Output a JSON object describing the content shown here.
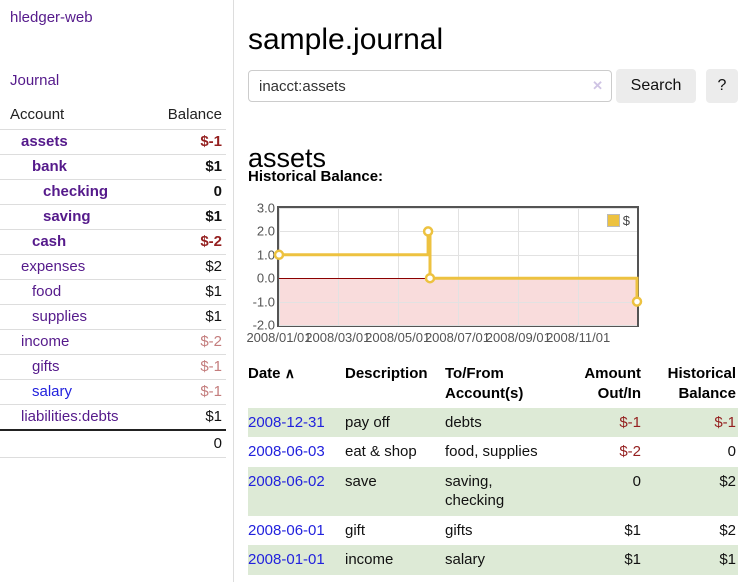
{
  "colors": {
    "purple": "#551a8b",
    "blue": "#2222dd",
    "negStrong": "#941f1f",
    "negSoft": "#c47d7d",
    "green": "#ddead6",
    "pink": "#f9dcdc",
    "zeroline": "#8b0000"
  },
  "app": {
    "brand": "hledger-web",
    "nav_journal": "Journal"
  },
  "sidebar": {
    "headers": [
      "Account",
      "Balance"
    ],
    "rows": [
      {
        "name": "assets",
        "indent": 1,
        "bold": true,
        "balance": "$-1"
      },
      {
        "name": "bank",
        "indent": 2,
        "bold": true,
        "balance": "$1"
      },
      {
        "name": "checking",
        "indent": 3,
        "bold": true,
        "balance": "0"
      },
      {
        "name": "saving",
        "indent": 3,
        "bold": true,
        "balance": "$1"
      },
      {
        "name": "cash",
        "indent": 2,
        "bold": true,
        "balance": "$-2"
      },
      {
        "name": "expenses",
        "indent": 1,
        "bold": false,
        "balance": "$2"
      },
      {
        "name": "food",
        "indent": 2,
        "bold": false,
        "balance": "$1"
      },
      {
        "name": "supplies",
        "indent": 2,
        "bold": false,
        "balance": "$1"
      },
      {
        "name": "income",
        "indent": 1,
        "bold": false,
        "balance": "$-2"
      },
      {
        "name": "gifts",
        "indent": 2,
        "bold": false,
        "balance": "$-1"
      },
      {
        "name": "salary",
        "indent": 2,
        "bold": false,
        "balance": "$-1",
        "blue": true
      },
      {
        "name": "liabilities:debts",
        "indent": 1,
        "bold": false,
        "balance": "$1"
      }
    ],
    "total": "0"
  },
  "main": {
    "title": "sample.journal",
    "search": {
      "value": "inacct:assets",
      "clear_icon": "✕",
      "button_label": "Search",
      "help_label": "?"
    },
    "account_heading": "assets",
    "chart_title": "Historical Balance:"
  },
  "chart_data": {
    "type": "line",
    "title": "Historical Balance",
    "step": true,
    "x_domain": [
      "2008-01-01",
      "2008-12-31"
    ],
    "ylim": [
      -2,
      3
    ],
    "y_ticks": [
      "3.0",
      "2.0",
      "1.0",
      "0.0",
      "-1.0",
      "-2.0"
    ],
    "x_ticks": [
      "2008/01/01",
      "2008/03/01",
      "2008/05/01",
      "2008/07/01",
      "2008/09/01",
      "2008/11/01"
    ],
    "series": [
      {
        "name": "$",
        "color": "#edc240",
        "points": [
          [
            "2008-01-01",
            1
          ],
          [
            "2008-06-01",
            2
          ],
          [
            "2008-06-03",
            0
          ],
          [
            "2008-12-31",
            -1
          ]
        ]
      }
    ],
    "negative_region": true,
    "legend_position": "top-right",
    "grid": true
  },
  "transactions": {
    "headers": [
      "Date",
      "Description",
      "To/From Account(s)",
      "Amount Out/In",
      "Historical Balance"
    ],
    "sort_icon": "∧",
    "rows": [
      {
        "date": "2008-12-31",
        "description": "pay off",
        "accounts": "debts",
        "amount": "$-1",
        "balance": "$-1"
      },
      {
        "date": "2008-06-03",
        "description": "eat & shop",
        "accounts": "food, supplies",
        "amount": "$-2",
        "balance": "0"
      },
      {
        "date": "2008-06-02",
        "description": "save",
        "accounts": "saving, checking",
        "amount": "0",
        "balance": "$2"
      },
      {
        "date": "2008-06-01",
        "description": "gift",
        "accounts": "gifts",
        "amount": "$1",
        "balance": "$2"
      },
      {
        "date": "2008-01-01",
        "description": "income",
        "accounts": "salary",
        "amount": "$1",
        "balance": "$1"
      }
    ]
  }
}
